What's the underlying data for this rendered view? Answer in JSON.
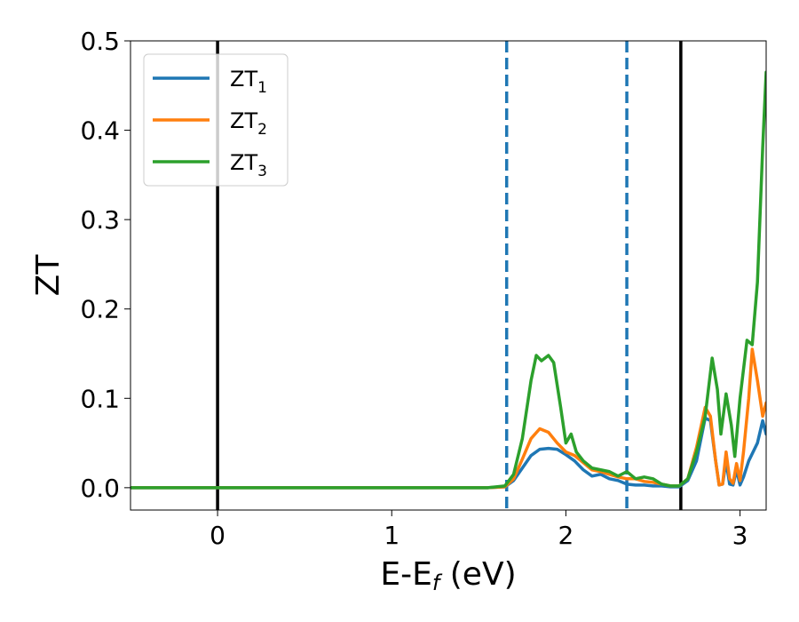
{
  "chart_data": {
    "type": "line",
    "title": "",
    "xlabel": "E-E",
    "xlabel_sub": "f",
    "xlabel_unit": " (eV)",
    "ylabel": "ZT",
    "xlim": [
      -0.5,
      3.15
    ],
    "ylim": [
      -0.025,
      0.5
    ],
    "xticks": [
      0,
      1,
      2,
      3
    ],
    "xtick_labels": [
      "0",
      "1",
      "2",
      "3"
    ],
    "yticks": [
      0.0,
      0.1,
      0.2,
      0.3,
      0.4,
      0.5
    ],
    "ytick_labels": [
      "0.0",
      "0.1",
      "0.2",
      "0.3",
      "0.4",
      "0.5"
    ],
    "grid": false,
    "legend": "top-left",
    "vlines": [
      {
        "x": 0.0,
        "style": "solid",
        "color": "#000000"
      },
      {
        "x": 1.66,
        "style": "dashed",
        "color": "#1f77b4"
      },
      {
        "x": 2.35,
        "style": "dashed",
        "color": "#1f77b4"
      },
      {
        "x": 2.66,
        "style": "solid",
        "color": "#000000"
      }
    ],
    "series": [
      {
        "name": "ZT",
        "name_sub": "1",
        "color": "#1f77b4",
        "points": [
          [
            -0.5,
            0
          ],
          [
            1.55,
            0
          ],
          [
            1.65,
            0.001
          ],
          [
            1.7,
            0.008
          ],
          [
            1.75,
            0.022
          ],
          [
            1.8,
            0.036
          ],
          [
            1.85,
            0.043
          ],
          [
            1.9,
            0.044
          ],
          [
            1.95,
            0.043
          ],
          [
            2.0,
            0.037
          ],
          [
            2.05,
            0.03
          ],
          [
            2.1,
            0.02
          ],
          [
            2.15,
            0.013
          ],
          [
            2.2,
            0.015
          ],
          [
            2.25,
            0.01
          ],
          [
            2.3,
            0.008
          ],
          [
            2.35,
            0.004
          ],
          [
            2.4,
            0.003
          ],
          [
            2.45,
            0.003
          ],
          [
            2.5,
            0.002
          ],
          [
            2.55,
            0.002
          ],
          [
            2.6,
            0.001
          ],
          [
            2.65,
            0.001
          ],
          [
            2.7,
            0.008
          ],
          [
            2.75,
            0.03
          ],
          [
            2.8,
            0.078
          ],
          [
            2.83,
            0.075
          ],
          [
            2.86,
            0.03
          ],
          [
            2.88,
            0.003
          ],
          [
            2.9,
            0.004
          ],
          [
            2.92,
            0.03
          ],
          [
            2.94,
            0.004
          ],
          [
            2.96,
            0.003
          ],
          [
            2.98,
            0.02
          ],
          [
            3.0,
            0.003
          ],
          [
            3.02,
            0.012
          ],
          [
            3.05,
            0.03
          ],
          [
            3.1,
            0.05
          ],
          [
            3.13,
            0.075
          ],
          [
            3.15,
            0.06
          ]
        ]
      },
      {
        "name": "ZT",
        "name_sub": "2",
        "color": "#ff7f0e",
        "points": [
          [
            -0.5,
            0
          ],
          [
            1.55,
            0
          ],
          [
            1.65,
            0.001
          ],
          [
            1.7,
            0.01
          ],
          [
            1.75,
            0.032
          ],
          [
            1.8,
            0.055
          ],
          [
            1.85,
            0.066
          ],
          [
            1.9,
            0.062
          ],
          [
            1.95,
            0.05
          ],
          [
            2.0,
            0.04
          ],
          [
            2.05,
            0.036
          ],
          [
            2.1,
            0.028
          ],
          [
            2.15,
            0.02
          ],
          [
            2.2,
            0.018
          ],
          [
            2.25,
            0.015
          ],
          [
            2.3,
            0.012
          ],
          [
            2.35,
            0.01
          ],
          [
            2.4,
            0.01
          ],
          [
            2.45,
            0.007
          ],
          [
            2.5,
            0.006
          ],
          [
            2.55,
            0.004
          ],
          [
            2.6,
            0.002
          ],
          [
            2.65,
            0.002
          ],
          [
            2.7,
            0.01
          ],
          [
            2.75,
            0.045
          ],
          [
            2.8,
            0.09
          ],
          [
            2.83,
            0.08
          ],
          [
            2.86,
            0.03
          ],
          [
            2.88,
            0.003
          ],
          [
            2.9,
            0.004
          ],
          [
            2.92,
            0.04
          ],
          [
            2.94,
            0.01
          ],
          [
            2.96,
            0.005
          ],
          [
            2.98,
            0.027
          ],
          [
            3.0,
            0.008
          ],
          [
            3.02,
            0.04
          ],
          [
            3.05,
            0.1
          ],
          [
            3.07,
            0.155
          ],
          [
            3.1,
            0.12
          ],
          [
            3.13,
            0.08
          ],
          [
            3.15,
            0.095
          ]
        ]
      },
      {
        "name": "ZT",
        "name_sub": "3",
        "color": "#2ca02c",
        "points": [
          [
            -0.5,
            0
          ],
          [
            1.55,
            0
          ],
          [
            1.65,
            0.002
          ],
          [
            1.7,
            0.015
          ],
          [
            1.75,
            0.055
          ],
          [
            1.8,
            0.12
          ],
          [
            1.83,
            0.148
          ],
          [
            1.86,
            0.142
          ],
          [
            1.9,
            0.148
          ],
          [
            1.93,
            0.14
          ],
          [
            1.97,
            0.09
          ],
          [
            2.0,
            0.05
          ],
          [
            2.03,
            0.06
          ],
          [
            2.06,
            0.04
          ],
          [
            2.1,
            0.03
          ],
          [
            2.15,
            0.022
          ],
          [
            2.2,
            0.02
          ],
          [
            2.25,
            0.018
          ],
          [
            2.3,
            0.013
          ],
          [
            2.35,
            0.018
          ],
          [
            2.4,
            0.01
          ],
          [
            2.45,
            0.012
          ],
          [
            2.5,
            0.01
          ],
          [
            2.55,
            0.004
          ],
          [
            2.6,
            0.002
          ],
          [
            2.65,
            0.002
          ],
          [
            2.7,
            0.01
          ],
          [
            2.75,
            0.04
          ],
          [
            2.8,
            0.08
          ],
          [
            2.84,
            0.145
          ],
          [
            2.87,
            0.11
          ],
          [
            2.89,
            0.06
          ],
          [
            2.92,
            0.105
          ],
          [
            2.95,
            0.07
          ],
          [
            2.97,
            0.035
          ],
          [
            3.0,
            0.1
          ],
          [
            3.04,
            0.165
          ],
          [
            3.07,
            0.16
          ],
          [
            3.1,
            0.23
          ],
          [
            3.13,
            0.38
          ],
          [
            3.15,
            0.465
          ]
        ]
      }
    ]
  }
}
